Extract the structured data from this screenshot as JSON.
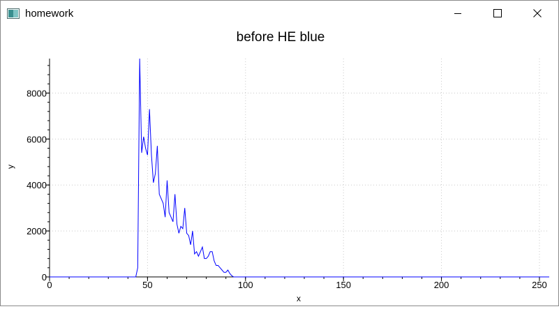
{
  "window": {
    "title": "homework",
    "icon": "app-window-icon",
    "controls": [
      "minimize-icon",
      "maximize-icon",
      "close-icon"
    ]
  },
  "chart_data": {
    "type": "line",
    "title": "before HE blue",
    "xlabel": "x",
    "ylabel": "y",
    "xlim": [
      0,
      255
    ],
    "ylim": [
      0,
      9500
    ],
    "xticks": [
      "0",
      "50",
      "100",
      "150",
      "200",
      "250"
    ],
    "yticks": [
      "0",
      "2000",
      "4000",
      "6000",
      "8000"
    ],
    "xtick_values": [
      0,
      50,
      100,
      150,
      200,
      250
    ],
    "ytick_values": [
      0,
      2000,
      4000,
      6000,
      8000
    ],
    "grid": true,
    "line_color": "#0000ff",
    "series": [
      {
        "x": [
          0,
          44,
          45,
          46,
          47,
          48,
          49,
          50,
          51,
          52,
          53,
          54,
          55,
          56,
          57,
          58,
          59,
          60,
          61,
          62,
          63,
          64,
          65,
          66,
          67,
          68,
          69,
          70,
          71,
          72,
          73,
          74,
          75,
          76,
          77,
          78,
          79,
          80,
          81,
          82,
          83,
          84,
          85,
          86,
          87,
          88,
          89,
          90,
          91,
          92,
          93,
          94,
          95,
          255
        ],
        "y": [
          0,
          0,
          400,
          9500,
          5400,
          6100,
          5600,
          5300,
          7300,
          5300,
          4100,
          4500,
          5700,
          3600,
          3400,
          3200,
          2600,
          4200,
          2800,
          2600,
          2400,
          3600,
          2300,
          1900,
          2200,
          2100,
          3000,
          1900,
          1800,
          1400,
          2000,
          1000,
          1100,
          900,
          1100,
          1300,
          800,
          800,
          900,
          1100,
          1100,
          700,
          500,
          500,
          400,
          300,
          200,
          200,
          300,
          150,
          50,
          0,
          0,
          0
        ]
      }
    ]
  }
}
